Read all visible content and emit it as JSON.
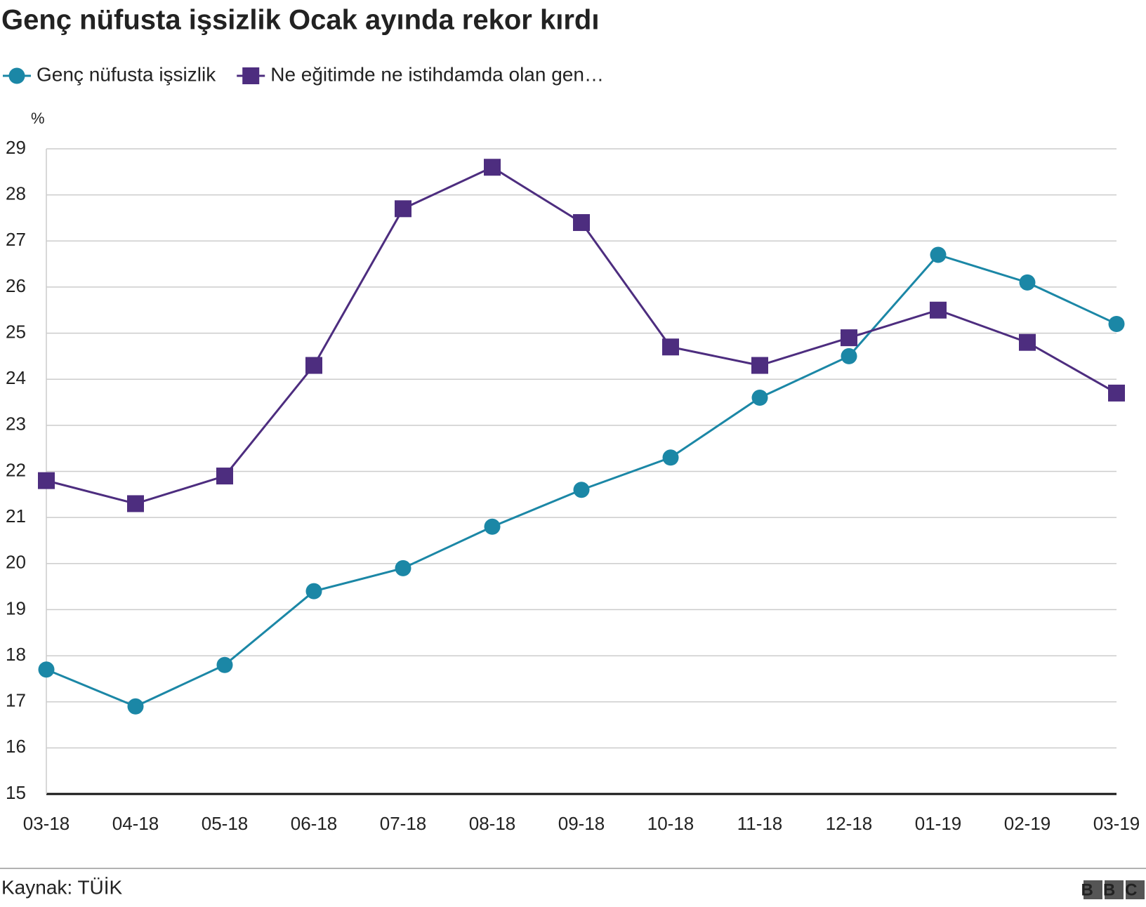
{
  "chart_data": {
    "type": "line",
    "title": "Genç nüfusta işsizlik Ocak ayında rekor kırdı",
    "y_unit": "%",
    "categories": [
      "03-18",
      "04-18",
      "05-18",
      "06-18",
      "07-18",
      "08-18",
      "09-18",
      "10-18",
      "11-18",
      "12-18",
      "01-19",
      "02-19",
      "03-19"
    ],
    "series": [
      {
        "name": "Genç nüfusta işsizlik",
        "color": "#1b87a6",
        "marker": "circle",
        "values": [
          17.7,
          16.9,
          17.8,
          19.4,
          19.9,
          20.8,
          21.6,
          22.3,
          23.6,
          24.5,
          26.7,
          26.1,
          25.2
        ]
      },
      {
        "name": "Ne eğitimde ne istihdamda olan gen…",
        "color": "#4d2d7f",
        "marker": "square",
        "values": [
          21.8,
          21.3,
          21.9,
          24.3,
          27.7,
          28.6,
          27.4,
          24.7,
          24.3,
          24.9,
          25.5,
          24.8,
          23.7
        ]
      }
    ],
    "ylim": [
      15,
      29
    ],
    "yticks": [
      15,
      16,
      17,
      18,
      19,
      20,
      21,
      22,
      23,
      24,
      25,
      26,
      27,
      28,
      29
    ],
    "grid": true,
    "source": "Kaynak: TÜİK",
    "logo": "BBC"
  }
}
